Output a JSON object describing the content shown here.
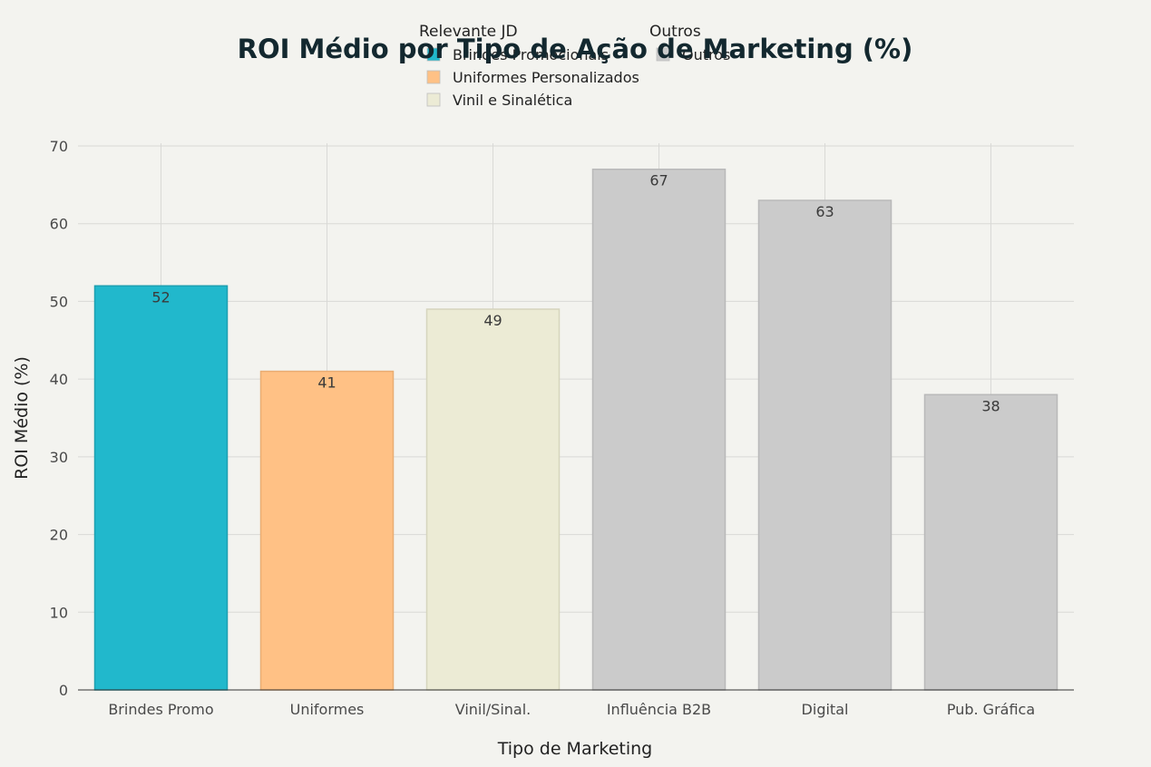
{
  "chart_data": {
    "type": "bar",
    "title": "ROI Médio por Tipo de Ação de Marketing (%)",
    "xlabel": "Tipo de Marketing",
    "ylabel": "ROI Médio (%)",
    "ylim": [
      0,
      70
    ],
    "yticks": [
      0,
      10,
      20,
      30,
      40,
      50,
      60,
      70
    ],
    "grid": true,
    "categories": [
      "Brindes Promo",
      "Uniformes",
      "Vinil/Sinal.",
      "Influência B2B",
      "Digital",
      "Pub. Gráfica"
    ],
    "values": [
      52,
      41,
      49,
      67,
      63,
      38
    ],
    "bar_colors": [
      "#21b8cc",
      "#ffc185",
      "#ecebd5",
      "#cbcbcb",
      "#cbcbcb",
      "#cbcbcb"
    ],
    "bar_edge_colors": [
      "#1d9fb0",
      "#e9ad73",
      "#d6d5bd",
      "#b9b9b9",
      "#b9b9b9",
      "#b9b9b9"
    ],
    "data_labels": [
      "52",
      "41",
      "49",
      "67",
      "63",
      "38"
    ],
    "legend": {
      "placement": "top-center",
      "groups": [
        {
          "title": "Relevante JD",
          "items": [
            {
              "label": "Brindes Promocionais",
              "color": "#21b8cc"
            },
            {
              "label": "Uniformes Personalizados",
              "color": "#ffc185"
            },
            {
              "label": "Vinil e Sinalética",
              "color": "#ecebd5"
            }
          ]
        },
        {
          "title": "Outros",
          "items": [
            {
              "label": "Outros",
              "color": "#cbcbcb"
            }
          ]
        }
      ]
    }
  }
}
